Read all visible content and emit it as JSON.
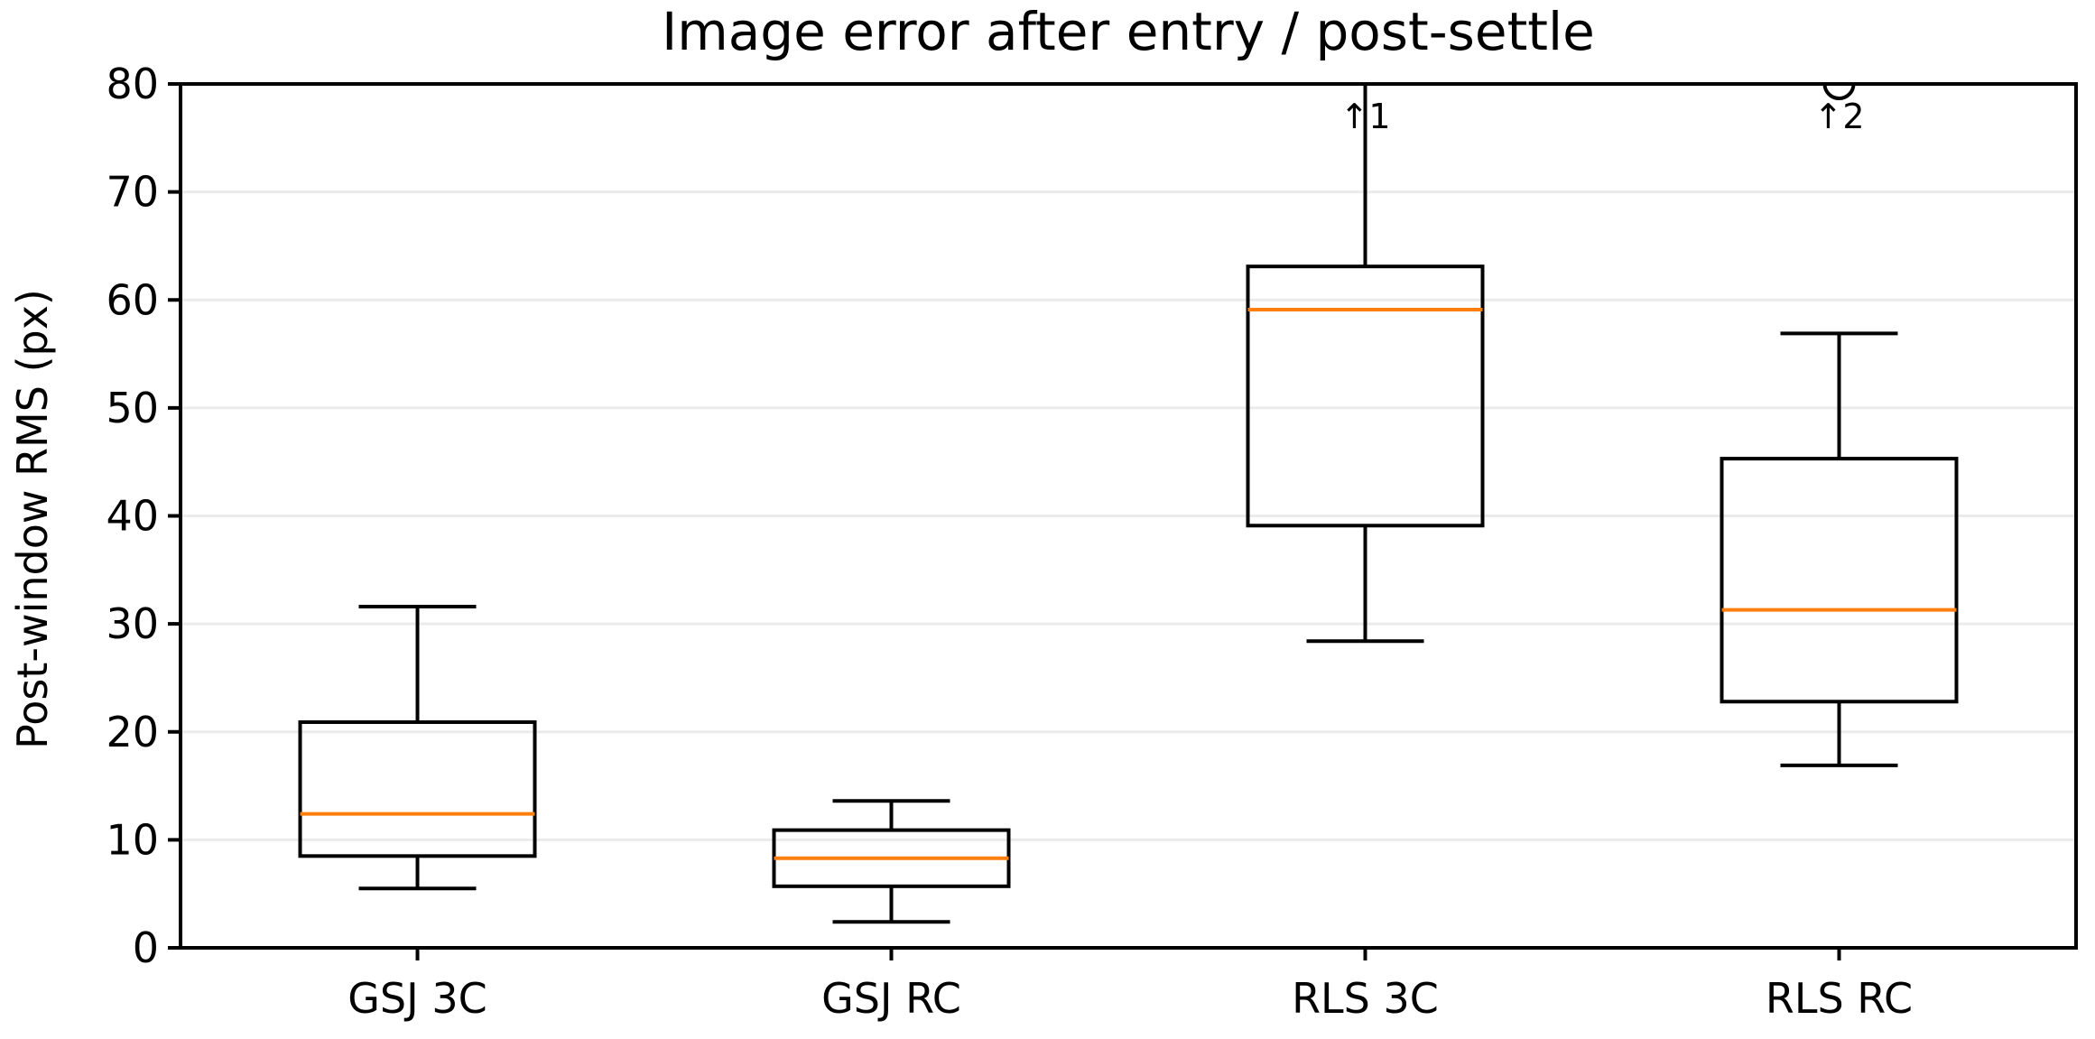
{
  "chart_data": {
    "type": "box",
    "title": "Image error after entry / post-settle",
    "xlabel": "",
    "ylabel": "Post-window RMS (px)",
    "ylim": [
      0,
      80
    ],
    "yticks": [
      0,
      10,
      20,
      30,
      40,
      50,
      60,
      70,
      80
    ],
    "grid": "horizontal",
    "categories": [
      "GSJ 3C",
      "GSJ RC",
      "RLS 3C",
      "RLS RC"
    ],
    "boxes": [
      {
        "category": "GSJ 3C",
        "whisker_low": 5.5,
        "q1": 8.5,
        "median": 12.4,
        "q3": 20.9,
        "whisker_high": 31.6
      },
      {
        "category": "GSJ RC",
        "whisker_low": 2.4,
        "q1": 5.7,
        "median": 8.3,
        "q3": 10.9,
        "whisker_high": 13.6
      },
      {
        "category": "RLS 3C",
        "whisker_low": 28.4,
        "q1": 39.1,
        "median": 59.1,
        "q3": 63.1,
        "whisker_high": 80
      },
      {
        "category": "RLS RC",
        "whisker_low": 16.9,
        "q1": 22.8,
        "median": 31.3,
        "q3": 45.3,
        "whisker_high": 56.9
      }
    ],
    "outliers": [
      {
        "category": "RLS RC",
        "value": 80
      }
    ],
    "annotations": [
      {
        "category": "RLS 3C",
        "text": "↑1"
      },
      {
        "category": "RLS RC",
        "text": "↑2"
      }
    ],
    "colors": {
      "box": "#000000",
      "median": "#ff7f0e",
      "grid": "#ebebeb"
    }
  }
}
